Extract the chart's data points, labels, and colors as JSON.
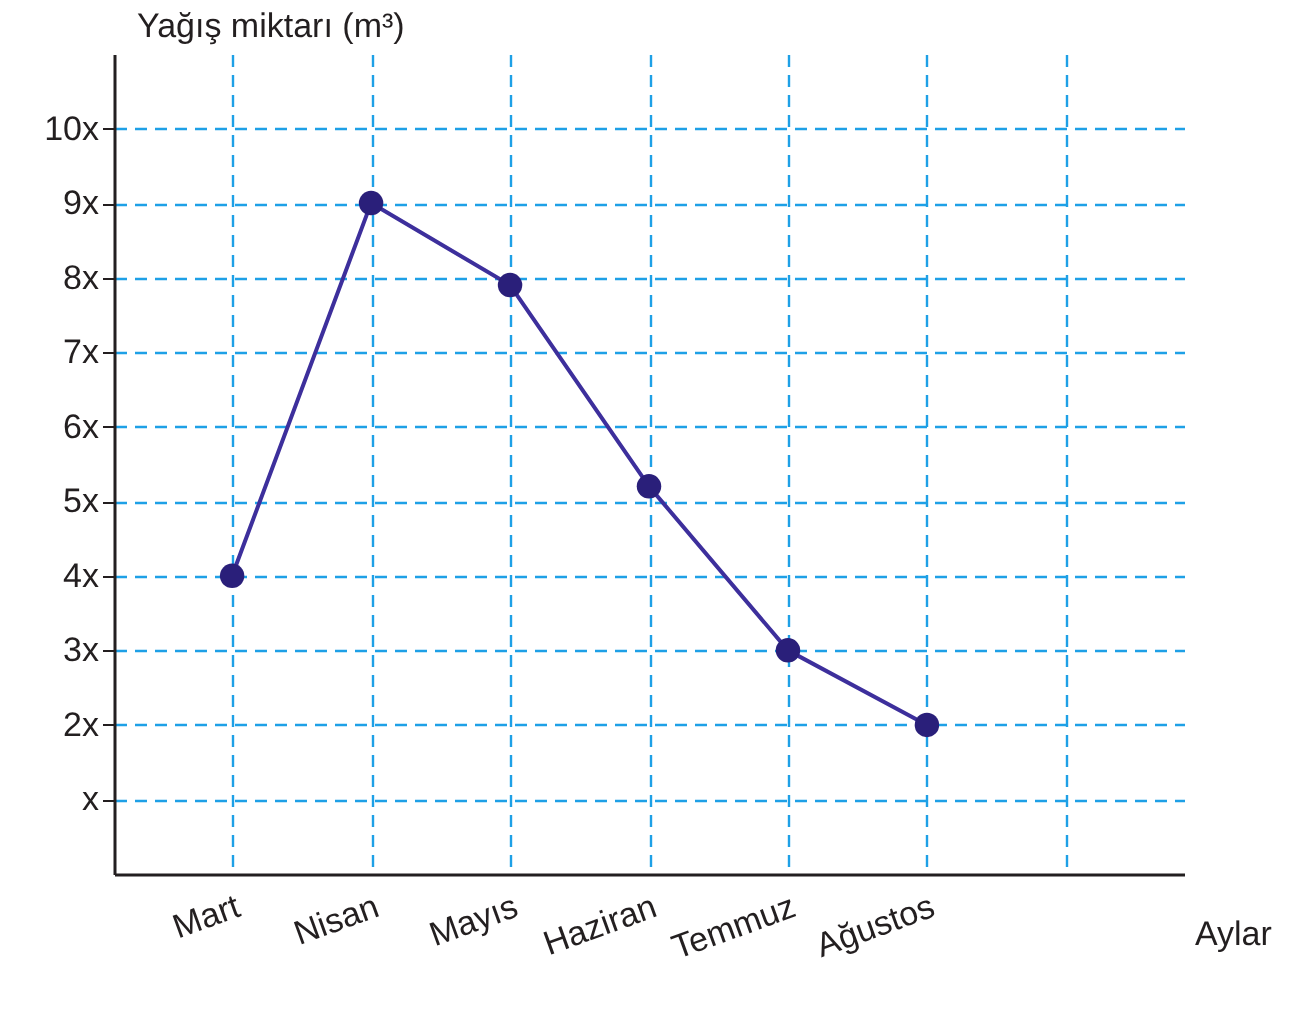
{
  "chart_data": {
    "type": "line",
    "xlabel": "Aylar",
    "ylabel": "Yağış miktarı (m³)",
    "categories": [
      "Mart",
      "Nisan",
      "Mayıs",
      "Haziran",
      "Temmuz",
      "Ağustos",
      null
    ],
    "series": [
      {
        "color": "#3d2f9c",
        "values": [
          4,
          9,
          7.9,
          5.2,
          3,
          2,
          null
        ]
      }
    ],
    "ylim": [
      0,
      11
    ],
    "yticks": [
      {
        "value": 1,
        "label": "x"
      },
      {
        "value": 2,
        "label": "2x"
      },
      {
        "value": 3,
        "label": "3x"
      },
      {
        "value": 4,
        "label": "4x"
      },
      {
        "value": 5,
        "label": "5x"
      },
      {
        "value": 6,
        "label": "6x"
      },
      {
        "value": 7,
        "label": "7x"
      },
      {
        "value": 8,
        "label": "8x"
      },
      {
        "value": 9,
        "label": "9x"
      },
      {
        "value": 10,
        "label": "10x"
      }
    ],
    "grid": true,
    "marker": "circle",
    "line_style": "solid"
  }
}
